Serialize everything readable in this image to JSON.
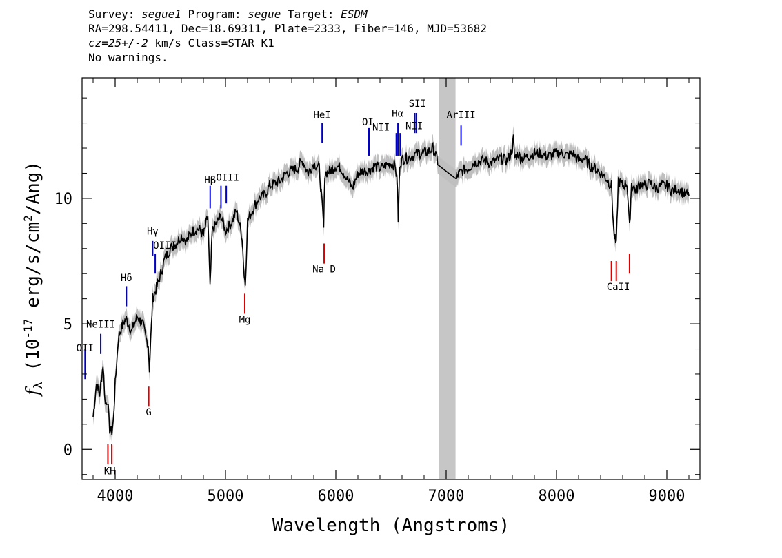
{
  "header": {
    "survey_label": "Survey:",
    "survey": "segue1",
    "program_label": "Program:",
    "program": "segue",
    "target_label": "Target:",
    "target": "ESDM",
    "coords": "RA=298.54411, Dec=18.69311, Plate=2333, Fiber=146, MJD=53682",
    "redshift": "cz=25+/-2",
    "redshift_unit": "km/s",
    "class": "Class=STAR K1",
    "warnings": "No warnings."
  },
  "colors": {
    "spectrum": "#000000",
    "error_band": "#bfbfbf",
    "masked_region": "#c6c6c6",
    "emission_line": "#0000cc",
    "absorption_line": "#dd0000"
  },
  "chart_data": {
    "type": "line",
    "title": "",
    "xlabel": "Wavelength (Angstroms)",
    "ylabel_parts": {
      "symbol": "f",
      "subscript": "λ",
      "text1": " (10",
      "exp": "-17",
      "text2": " erg/s/cm",
      "exp2": "2",
      "text3": "/Ang)"
    },
    "xlim": [
      3700,
      9300
    ],
    "ylim": [
      -1.2,
      14.8
    ],
    "xticks": [
      4000,
      5000,
      6000,
      7000,
      8000,
      9000
    ],
    "xtick_labels": [
      "4000",
      "5000",
      "6000",
      "7000",
      "8000",
      "9000"
    ],
    "yticks": [
      0,
      5,
      10
    ],
    "ytick_labels": [
      "0",
      "5",
      "10"
    ],
    "x_minor_step": 200,
    "y_minor_step": 1,
    "grid": false,
    "masked_region": [
      6935,
      7085
    ],
    "series": [
      {
        "x": [
          3800,
          3830,
          3860,
          3890,
          3910,
          3930,
          3950,
          3970,
          3985,
          4000,
          4030,
          4070,
          4100,
          4150,
          4200,
          4250,
          4280,
          4300,
          4310,
          4340,
          4380,
          4420,
          4450,
          4500,
          4550,
          4600,
          4650,
          4700,
          4760,
          4800,
          4840,
          4860,
          4880,
          4920,
          4960,
          5000,
          5050,
          5100,
          5150,
          5170,
          5180,
          5200,
          5250,
          5300,
          5350,
          5400,
          5450,
          5500,
          5550,
          5600,
          5650,
          5700,
          5750,
          5800,
          5850,
          5880,
          5890,
          5900,
          5950,
          6000,
          6050,
          6100,
          6150,
          6200,
          6250,
          6300,
          6350,
          6400,
          6450,
          6500,
          6540,
          6560,
          6565,
          6580,
          6620,
          6650,
          6700,
          6750,
          6800,
          6850,
          6880,
          6900,
          6935,
          7085,
          7100,
          7150,
          7200,
          7250,
          7300,
          7350,
          7400,
          7450,
          7500,
          7550,
          7580,
          7600,
          7610,
          7620,
          7650,
          7680,
          7700,
          7750,
          7800,
          7850,
          7900,
          7950,
          8000,
          8050,
          8100,
          8150,
          8200,
          8250,
          8300,
          8350,
          8400,
          8450,
          8498,
          8520,
          8542,
          8560,
          8600,
          8640,
          8662,
          8680,
          8720,
          8760,
          8800,
          8850,
          8900,
          8950,
          9000,
          9050,
          9100,
          9150,
          9200
        ],
        "y": [
          1.3,
          2.6,
          2.2,
          3.4,
          1.8,
          2.0,
          0.8,
          0.7,
          1.2,
          2.6,
          4.5,
          5.0,
          5.2,
          4.7,
          5.3,
          5.0,
          4.4,
          4.2,
          3.2,
          6.0,
          6.5,
          7.1,
          7.6,
          8.0,
          8.2,
          8.5,
          8.3,
          8.7,
          8.8,
          8.5,
          9.3,
          6.4,
          8.7,
          9.0,
          9.3,
          8.7,
          9.0,
          9.5,
          8.5,
          6.9,
          6.6,
          9.1,
          9.6,
          10.0,
          10.1,
          10.5,
          10.6,
          10.7,
          11.0,
          11.1,
          11.2,
          11.5,
          11.0,
          11.4,
          11.2,
          9.5,
          8.8,
          11.0,
          11.1,
          11.3,
          11.2,
          10.8,
          10.4,
          11.0,
          11.1,
          11.1,
          11.3,
          11.2,
          11.3,
          11.4,
          11.3,
          10.4,
          9.0,
          11.4,
          11.6,
          11.6,
          11.7,
          11.8,
          11.8,
          11.9,
          12.0,
          11.8,
          11.3,
          10.7,
          10.9,
          11.1,
          11.2,
          11.4,
          11.5,
          11.5,
          11.4,
          11.5,
          11.6,
          11.5,
          11.7,
          12.0,
          12.4,
          11.6,
          11.8,
          11.6,
          11.6,
          11.7,
          11.8,
          11.8,
          11.7,
          11.7,
          11.8,
          11.8,
          11.7,
          11.8,
          11.5,
          11.6,
          11.3,
          11.2,
          11.0,
          10.8,
          10.5,
          8.6,
          8.1,
          10.7,
          10.5,
          10.6,
          8.8,
          10.6,
          10.3,
          10.6,
          10.5,
          10.6,
          10.4,
          10.5,
          10.5,
          10.3,
          10.4,
          10.2,
          10.1
        ]
      }
    ],
    "emission_lines": [
      {
        "label": "OII",
        "x": 3727,
        "top": 4.0,
        "bottom": 2.8
      },
      {
        "label": "NeIII",
        "x": 3869,
        "top": 4.6,
        "bottom": 3.8
      },
      {
        "label": "Hδ",
        "x": 4102,
        "top": 6.5,
        "bottom": 5.7
      },
      {
        "label": "Hγ",
        "x": 4340,
        "top": 8.3,
        "bottom": 7.7
      },
      {
        "label": "OIII",
        "x": 4363,
        "top": 7.8,
        "bottom": 7.0
      },
      {
        "label": "Hβ",
        "x": 4861,
        "top": 10.5,
        "bottom": 9.6
      },
      {
        "label": "OIII",
        "x": 4959,
        "top": 10.5,
        "bottom": 9.6
      },
      {
        "label": "OIII",
        "x": 5007,
        "top": 10.5,
        "bottom": 9.8
      },
      {
        "label": "HeI",
        "x": 5876,
        "top": 13.0,
        "bottom": 12.2
      },
      {
        "label": "OI",
        "x": 6300,
        "top": 12.8,
        "bottom": 11.7
      },
      {
        "label": "NII",
        "x": 6548,
        "top": 12.6,
        "bottom": 11.7
      },
      {
        "label": "Hα",
        "x": 6563,
        "top": 13.0,
        "bottom": 11.7
      },
      {
        "label": "NII",
        "x": 6583,
        "top": 12.6,
        "bottom": 11.7
      },
      {
        "label": "SII",
        "x": 6716,
        "top": 13.4,
        "bottom": 12.6
      },
      {
        "label": "SII",
        "x": 6731,
        "top": 13.4,
        "bottom": 12.6
      },
      {
        "label": "ArIII",
        "x": 7135,
        "top": 12.9,
        "bottom": 12.1
      }
    ],
    "emission_labels": [
      {
        "text": "OII",
        "x": 3727,
        "y": 3.9
      },
      {
        "text": "NeIII",
        "x": 3869,
        "y": 4.85
      },
      {
        "text": "Hδ",
        "x": 4102,
        "y": 6.7
      },
      {
        "text": "Hγ",
        "x": 4340,
        "y": 8.55
      },
      {
        "text": "OIII",
        "x": 4450,
        "y": 8.0
      },
      {
        "text": "Hβ",
        "x": 4861,
        "y": 10.6
      },
      {
        "text": "OIII",
        "x": 5020,
        "y": 10.7
      },
      {
        "text": "HeI",
        "x": 5876,
        "y": 13.2
      },
      {
        "text": "OI",
        "x": 6290,
        "y": 12.9
      },
      {
        "text": "NII",
        "x": 6410,
        "y": 12.7
      },
      {
        "text": "Hα",
        "x": 6560,
        "y": 13.25
      },
      {
        "text": "NII",
        "x": 6710,
        "y": 12.75
      },
      {
        "text": "SII",
        "x": 6740,
        "y": 13.65
      },
      {
        "text": "ArIII",
        "x": 7135,
        "y": 13.2
      }
    ],
    "absorption_lines": [
      {
        "label": "K",
        "x": 3934,
        "top": 0.2,
        "bottom": -0.6
      },
      {
        "label": "H",
        "x": 3969,
        "top": 0.2,
        "bottom": -0.6
      },
      {
        "label": "G",
        "x": 4304,
        "top": 2.5,
        "bottom": 1.7
      },
      {
        "label": "Mg",
        "x": 5175,
        "top": 6.2,
        "bottom": 5.4
      },
      {
        "label": "Na D",
        "x": 5894,
        "top": 8.2,
        "bottom": 7.4
      },
      {
        "label": "CaII",
        "x": 8498,
        "top": 7.5,
        "bottom": 6.7
      },
      {
        "label": "CaII",
        "x": 8542,
        "top": 7.5,
        "bottom": 6.7
      },
      {
        "label": "CaII",
        "x": 8662,
        "top": 7.8,
        "bottom": 7.0
      }
    ],
    "absorption_labels": [
      {
        "text": "KH",
        "x": 3951,
        "y": -1.0
      },
      {
        "text": "G",
        "x": 4304,
        "y": 1.35
      },
      {
        "text": "Mg",
        "x": 5175,
        "y": 5.05
      },
      {
        "text": "Na D",
        "x": 5894,
        "y": 7.05
      },
      {
        "text": "CaII",
        "x": 8560,
        "y": 6.35
      }
    ]
  }
}
